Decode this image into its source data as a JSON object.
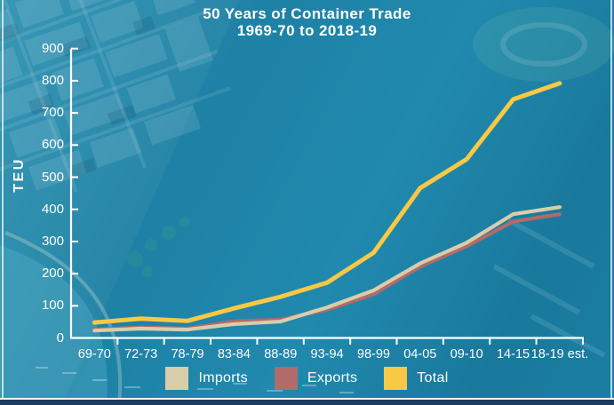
{
  "title": {
    "line1": "50 Years of Container Trade",
    "line2": "1969-70 to 2018-19"
  },
  "y_axis": {
    "label": "TEU",
    "tick_labels": [
      "900",
      "800",
      "700",
      "600",
      "500",
      "400",
      "300",
      "200",
      "100",
      "0"
    ]
  },
  "legend": {
    "items": [
      {
        "label": "Imports",
        "color": "#d8cdaa"
      },
      {
        "label": "Exports",
        "color": "#b06b6a"
      },
      {
        "label": "Total",
        "color": "#f9c845"
      }
    ]
  },
  "frame": {
    "bottom_bar_color": "#1c3c61"
  },
  "chart_data": {
    "type": "line",
    "title": "50 Years of Container Trade",
    "subtitle": "1969-70 to 2018-19",
    "ylabel": "TEU",
    "ylim": [
      0,
      900
    ],
    "ytick_step": 100,
    "grid": false,
    "legend_position": "bottom",
    "categories": [
      "69-70",
      "72-73",
      "78-79",
      "83-84",
      "88-89",
      "93-94",
      "98-99",
      "04-05",
      "09-10",
      "14-15",
      "18-19 est."
    ],
    "series": [
      {
        "name": "Imports",
        "color": "#d8cdaa",
        "values": [
          23,
          29,
          26,
          43,
          51,
          95,
          148,
          232,
          296,
          385,
          407
        ]
      },
      {
        "name": "Exports",
        "color": "#b06b6a",
        "values": [
          26,
          33,
          29,
          52,
          57,
          88,
          136,
          222,
          285,
          362,
          385
        ]
      },
      {
        "name": "Total",
        "color": "#f9c845",
        "values": [
          48,
          60,
          53,
          92,
          128,
          172,
          265,
          466,
          556,
          742,
          792
        ]
      }
    ],
    "draw_order": [
      "Exports",
      "Imports",
      "Total"
    ]
  }
}
